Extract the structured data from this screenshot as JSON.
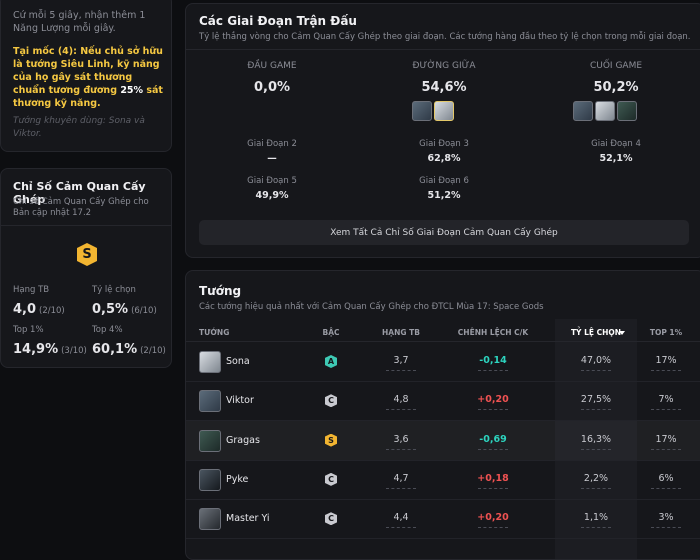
{
  "effect_card": {
    "description": "Cứ mỗi 5 giây, nhận thêm 1 Năng Lượng mỗi giây.",
    "milestone": {
      "before": "Tại mốc (4): Nếu chủ sở hữu là tướng Siêu Linh, kỹ năng của họ gây sát thương chuẩn tương đương ",
      "highlight": "25%",
      "after": " sát thương kỹ năng."
    },
    "recommended": "Tướng khuyên dùng: Sona và Viktor."
  },
  "stats_card": {
    "title": "Chỉ Số Cảm Quan Cấy Ghép",
    "subtitle": "Chỉ số Cảm Quan Cấy Ghép cho Bản cập nhật 17.2",
    "tier": "S",
    "stats": [
      {
        "label": "Hạng TB",
        "value": "4,0",
        "rank": "(2/10)"
      },
      {
        "label": "Tỷ lệ chọn",
        "value": "0,5%",
        "rank": "(6/10)"
      },
      {
        "label": "Top 1%",
        "value": "14,9%",
        "rank": "(3/10)"
      },
      {
        "label": "Top 4%",
        "value": "60,1%",
        "rank": "(2/10)"
      }
    ]
  },
  "stages_card": {
    "title": "Các Giai Đoạn Trận Đấu",
    "subtitle": "Tỷ lệ thắng vòng cho Cảm Quan Cấy Ghép theo giai đoạn. Các tướng hàng đầu theo tỷ lệ chọn trong mỗi giai đoạn.",
    "phases": [
      {
        "label": "ĐẦU GAME",
        "value": "0,0%"
      },
      {
        "label": "ĐƯỜNG GIỮA",
        "value": "54,6%"
      },
      {
        "label": "CUỐI GAME",
        "value": "50,2%"
      }
    ],
    "stages": [
      {
        "label": "Giai Đoạn 2",
        "value": "—"
      },
      {
        "label": "Giai Đoạn 3",
        "value": "62,8%"
      },
      {
        "label": "Giai Đoạn 4",
        "value": "52,1%"
      },
      {
        "label": "Giai Đoạn 5",
        "value": "49,9%"
      },
      {
        "label": "Giai Đoạn 6",
        "value": "51,2%"
      }
    ],
    "button": "Xem Tất Cả Chỉ Số Giai Đoạn Cảm Quan Cấy Ghép"
  },
  "champions_card": {
    "title": "Tướng",
    "subtitle": "Các tướng hiệu quả nhất với Cảm Quan Cấy Ghép cho ĐTCL Mùa 17: Space Gods",
    "columns": [
      "TƯỚNG",
      "BẬC",
      "HẠNG TB",
      "CHÊNH LỆCH C/K",
      "TỶ LỆ CHỌN",
      "TOP 1%"
    ],
    "rows": [
      {
        "name": "Sona",
        "tier": "A",
        "tier_color": "#3ec9b4",
        "avg_place": "3,7",
        "delta": "-0,14",
        "pick_rate": "47,0%",
        "top1": "17%"
      },
      {
        "name": "Viktor",
        "tier": "C",
        "tier_color": "#c9cad0",
        "avg_place": "4,8",
        "delta": "+0,20",
        "pick_rate": "27,5%",
        "top1": "7%"
      },
      {
        "name": "Gragas",
        "tier": "S",
        "tier_color": "#f2b531",
        "avg_place": "3,6",
        "delta": "-0,69",
        "pick_rate": "16,3%",
        "top1": "17%"
      },
      {
        "name": "Pyke",
        "tier": "C",
        "tier_color": "#c9cad0",
        "avg_place": "4,7",
        "delta": "+0,18",
        "pick_rate": "2,2%",
        "top1": "6%"
      },
      {
        "name": "Master Yi",
        "tier": "C",
        "tier_color": "#c9cad0",
        "avg_place": "4,4",
        "delta": "+0,20",
        "pick_rate": "1,1%",
        "top1": "3%"
      }
    ]
  }
}
